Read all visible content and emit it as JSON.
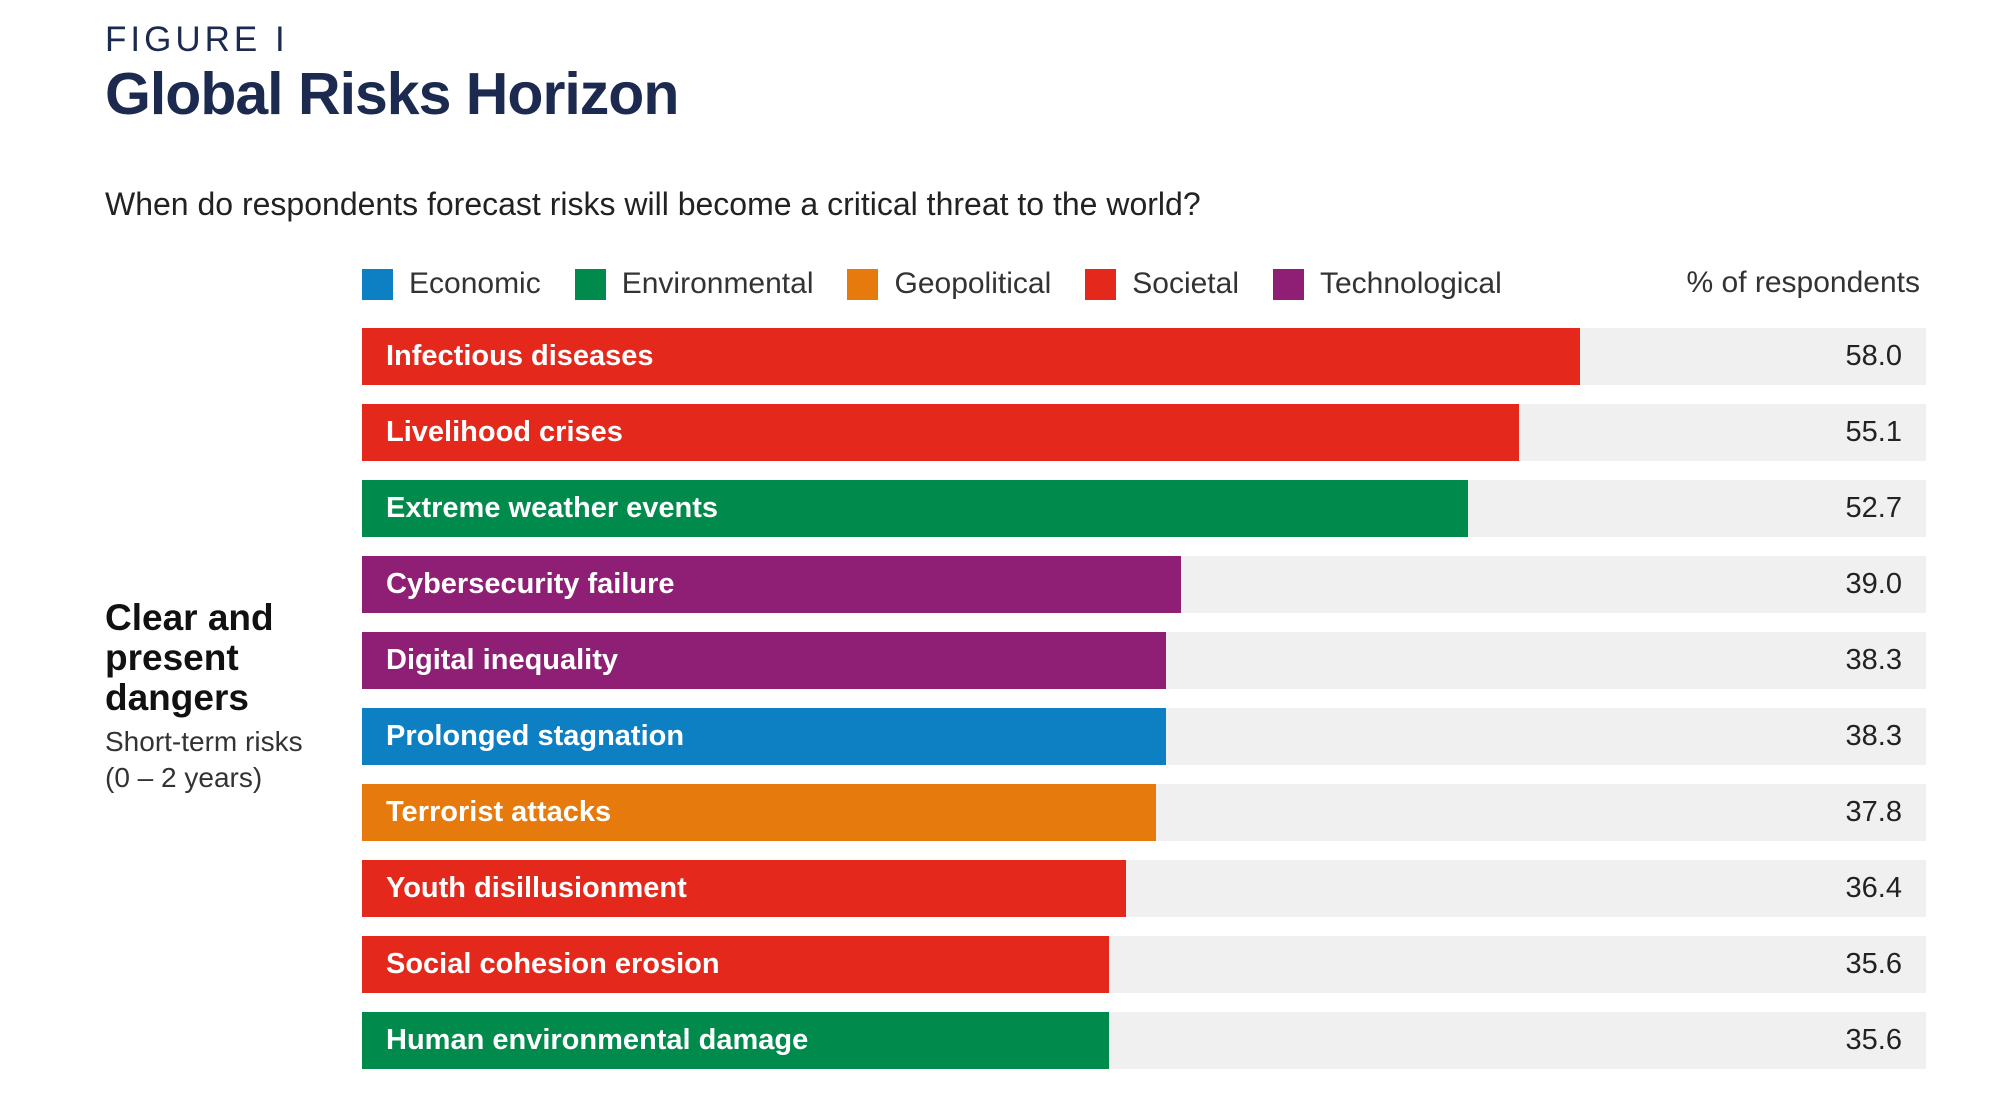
{
  "figure_label": "FIGURE I",
  "title": "Global Risks Horizon",
  "question": "When do respondents forecast risks will become a critical threat to the world?",
  "legend": [
    {
      "label": "Economic",
      "color": "#0d80c4"
    },
    {
      "label": "Environmental",
      "color": "#008a4c"
    },
    {
      "label": "Geopolitical",
      "color": "#e67a0c"
    },
    {
      "label": "Societal",
      "color": "#e4291c"
    },
    {
      "label": "Technological",
      "color": "#8e1f74"
    }
  ],
  "unit_label": "% of respondents",
  "section": {
    "title": "Clear and present dangers",
    "subtitle": "Short-term risks (0 – 2 years)"
  },
  "chart_data": {
    "type": "bar",
    "orientation": "horizontal",
    "xlim": [
      0,
      74.5
    ],
    "categories": [
      "Infectious diseases",
      "Livelihood crises",
      "Extreme weather events",
      "Cybersecurity failure",
      "Digital inequality",
      "Prolonged stagnation",
      "Terrorist attacks",
      "Youth disillusionment",
      "Social cohesion erosion",
      "Human environmental damage"
    ],
    "values": [
      58.0,
      55.1,
      52.7,
      39.0,
      38.3,
      38.3,
      37.8,
      36.4,
      35.6,
      35.6
    ],
    "value_labels": [
      "58.0",
      "55.1",
      "52.7",
      "39.0",
      "38.3",
      "38.3",
      "37.8",
      "36.4",
      "35.6",
      "35.6"
    ],
    "groups": [
      "Societal",
      "Societal",
      "Environmental",
      "Technological",
      "Technological",
      "Economic",
      "Geopolitical",
      "Societal",
      "Societal",
      "Environmental"
    ]
  }
}
